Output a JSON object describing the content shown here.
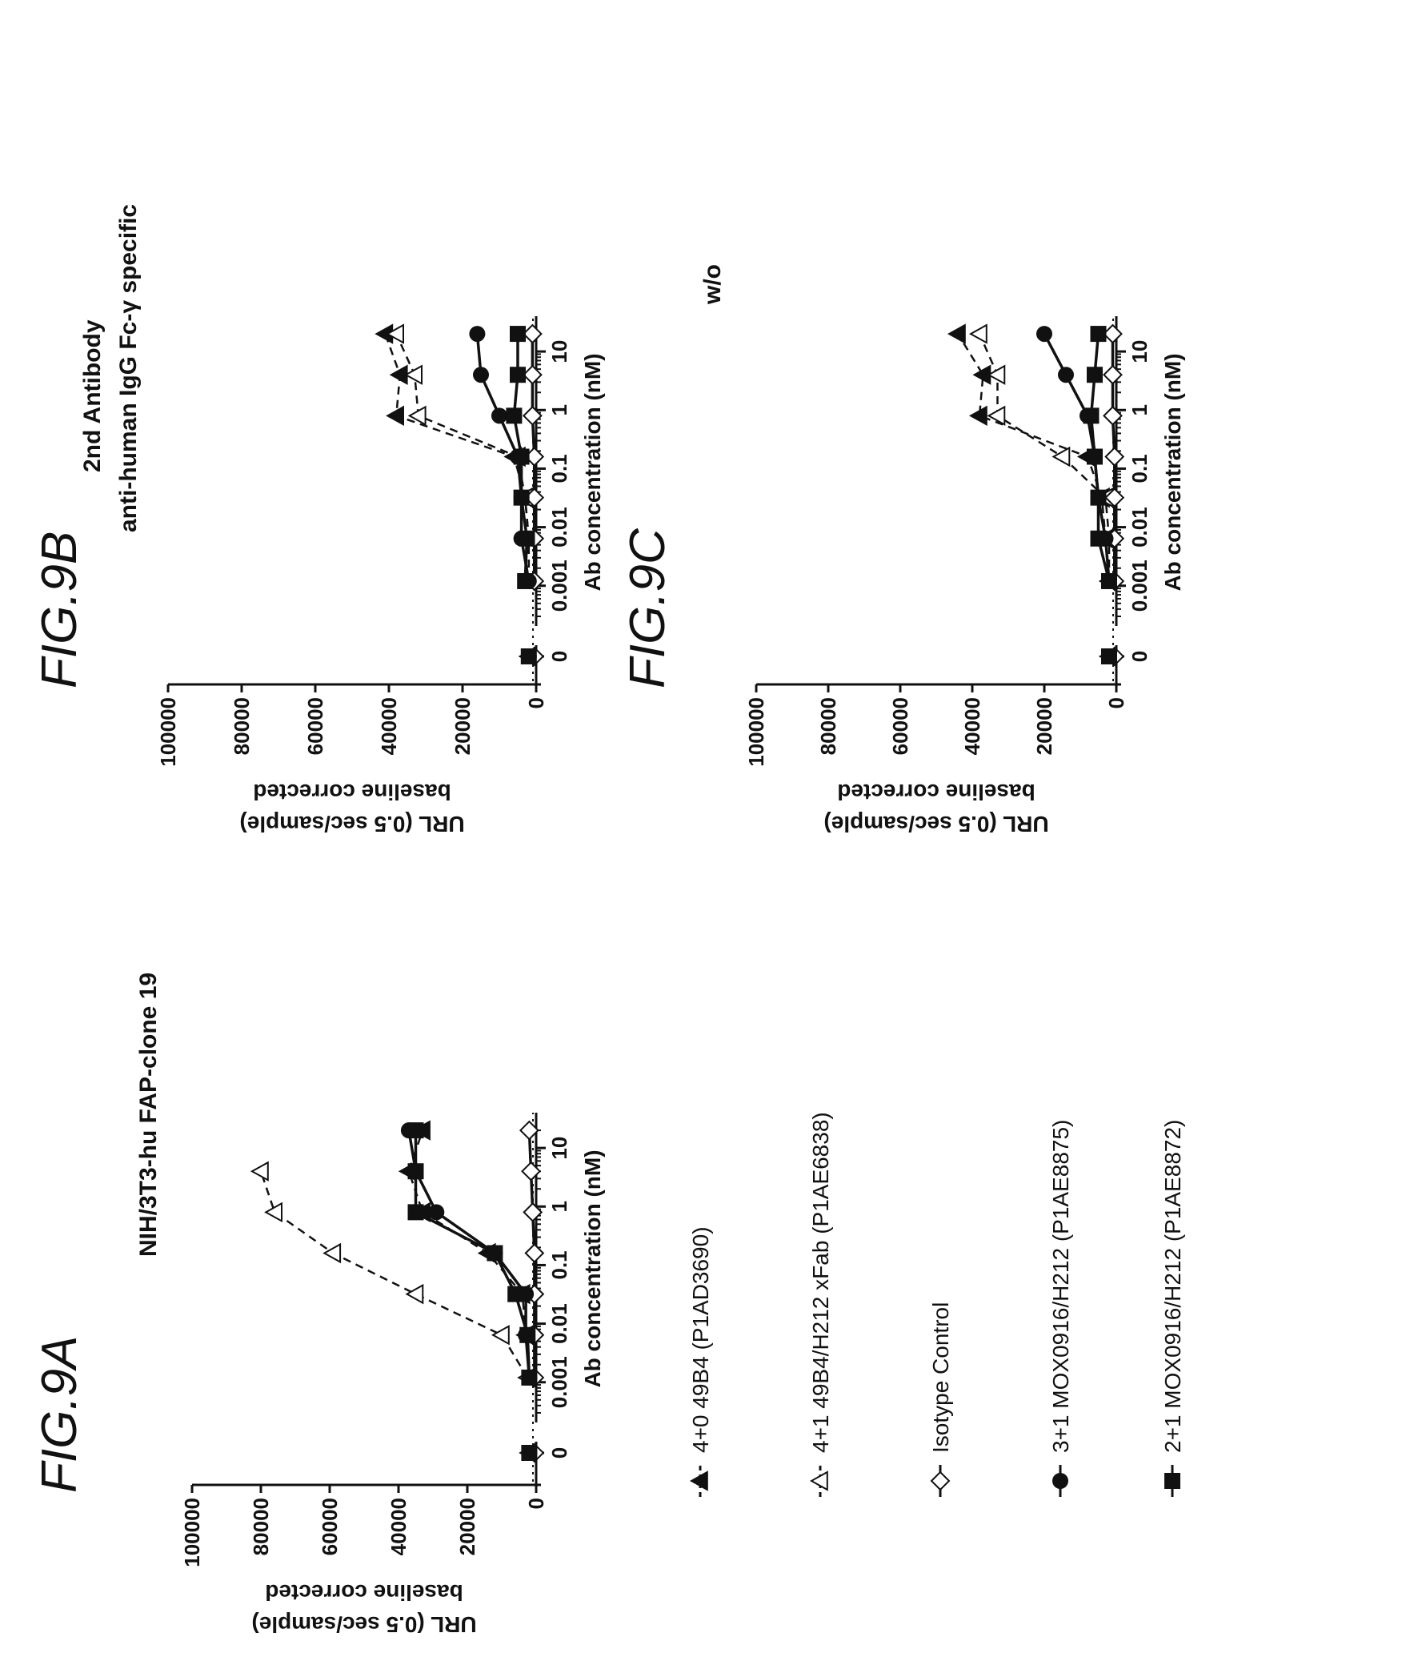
{
  "figures": {
    "a": {
      "label": "FIG.9A",
      "title": "NIH/3T3-hu FAP-clone 19",
      "title_sub": ""
    },
    "b": {
      "label": "FIG.9B",
      "title": "2nd Antibody",
      "title_sub": "anti-human IgG Fc-γ specific"
    },
    "c": {
      "label": "FIG.9C",
      "title": "w/o",
      "title_sub": ""
    }
  },
  "axes": {
    "xlabel": "Ab concentration (nM)",
    "ylabel_1": "URL (0.5 sec/sample)",
    "ylabel_2": "baseline corrected",
    "x_ticks": [
      "0",
      "0.001",
      "0.01",
      "0.1",
      "1",
      "10"
    ],
    "y_ticks": [
      "0",
      "20000",
      "40000",
      "60000",
      "80000",
      "100000"
    ]
  },
  "legend": [
    {
      "label": "4+0 49B4 (P1AD3690)",
      "marker": "filled-triangle",
      "line": "dashed"
    },
    {
      "label": "4+1 49B4/H212 xFab (P1AE6838)",
      "marker": "open-triangle",
      "line": "dashed"
    },
    {
      "label": "Isotype Control",
      "marker": "open-diamond",
      "line": "solid"
    },
    {
      "label": "3+1 MOX0916/H212 (P1AE8875)",
      "marker": "filled-circle",
      "line": "solid"
    },
    {
      "label": "2+1 MOX0916/H212 (P1AE8872)",
      "marker": "filled-square",
      "line": "solid"
    }
  ],
  "colors": {
    "ink": "#111111",
    "background": "#ffffff"
  },
  "chart_data": [
    {
      "id": "FIG.9A",
      "type": "scatter",
      "title": "NIH/3T3-hu FAP-clone 19",
      "xlabel": "Ab concentration (nM)",
      "ylabel": "URL (0.5 sec/sample) baseline corrected",
      "x_scale": "log",
      "xlim": [
        0.0003,
        25
      ],
      "ylim": [
        0,
        100000
      ],
      "x": [
        0,
        0.0012,
        0.0064,
        0.032,
        0.16,
        0.8,
        4,
        20
      ],
      "series": [
        {
          "name": "4+0 49B4 (P1AD3690)",
          "marker": "filled-triangle",
          "line": "dashed",
          "values": [
            2000,
            2000,
            3000,
            4000,
            14000,
            33000,
            37000,
            33000
          ]
        },
        {
          "name": "4+1 49B4/H212 xFab (P1AE6838)",
          "marker": "open-triangle",
          "line": "dashed",
          "values": [
            2000,
            2500,
            10000,
            35000,
            59000,
            76000,
            80000,
            null
          ]
        },
        {
          "name": "Isotype Control",
          "marker": "open-diamond",
          "line": "solid",
          "values": [
            500,
            500,
            500,
            500,
            500,
            1000,
            1500,
            2000
          ]
        },
        {
          "name": "3+1 MOX0916/H212 (P1AE8875)",
          "marker": "filled-circle",
          "line": "solid",
          "values": [
            2000,
            2000,
            3000,
            3000,
            12000,
            29000,
            35000,
            37000
          ]
        },
        {
          "name": "2+1 MOX0916/H212 (P1AE8872)",
          "marker": "filled-square",
          "line": "solid",
          "values": [
            2000,
            2000,
            2500,
            6000,
            12000,
            35000,
            35000,
            35000
          ]
        }
      ]
    },
    {
      "id": "FIG.9B",
      "type": "scatter",
      "title": "2nd Antibody anti-human IgG Fc-γ specific",
      "xlabel": "Ab concentration (nM)",
      "ylabel": "URL (0.5 sec/sample) baseline corrected",
      "x_scale": "log",
      "xlim": [
        0.0003,
        25
      ],
      "ylim": [
        0,
        100000
      ],
      "x": [
        0,
        0.0012,
        0.0064,
        0.032,
        0.16,
        0.8,
        4,
        20
      ],
      "series": [
        {
          "name": "4+0 49B4 (P1AD3690)",
          "marker": "filled-triangle",
          "line": "dashed",
          "values": [
            2000,
            2000,
            2000,
            3000,
            6000,
            38000,
            37000,
            41000
          ]
        },
        {
          "name": "4+1 49B4/H212 xFab (P1AE6838)",
          "marker": "open-triangle",
          "line": "dashed",
          "values": [
            2000,
            2000,
            2000,
            3000,
            5000,
            32000,
            33000,
            38000
          ]
        },
        {
          "name": "Isotype Control",
          "marker": "open-diamond",
          "line": "solid",
          "values": [
            500,
            500,
            500,
            500,
            500,
            1000,
            1000,
            1000
          ]
        },
        {
          "name": "3+1 MOX0916/H212 (P1AE8875)",
          "marker": "filled-circle",
          "line": "solid",
          "values": [
            2000,
            2000,
            4000,
            4000,
            5000,
            10000,
            15000,
            16000
          ]
        },
        {
          "name": "2+1 MOX0916/H212 (P1AE8872)",
          "marker": "filled-square",
          "line": "solid",
          "values": [
            2000,
            3000,
            2500,
            4000,
            4000,
            6000,
            5000,
            5000
          ]
        }
      ]
    },
    {
      "id": "FIG.9C",
      "type": "scatter",
      "title": "w/o",
      "xlabel": "Ab concentration (nM)",
      "ylabel": "URL (0.5 sec/sample) baseline corrected",
      "x_scale": "log",
      "xlim": [
        0.0003,
        25
      ],
      "ylim": [
        0,
        100000
      ],
      "x": [
        0,
        0.0012,
        0.0064,
        0.032,
        0.16,
        0.8,
        4,
        20
      ],
      "series": [
        {
          "name": "4+0 49B4 (P1AD3690)",
          "marker": "filled-triangle",
          "line": "dashed",
          "values": [
            2000,
            2000,
            3000,
            4000,
            8000,
            38000,
            37000,
            44000
          ]
        },
        {
          "name": "4+1 49B4/H212 xFab (P1AE6838)",
          "marker": "open-triangle",
          "line": "dashed",
          "values": [
            2000,
            2000,
            2000,
            3000,
            15000,
            33000,
            33000,
            38000
          ]
        },
        {
          "name": "Isotype Control",
          "marker": "open-diamond",
          "line": "solid",
          "values": [
            500,
            500,
            500,
            500,
            500,
            1000,
            1000,
            1000
          ]
        },
        {
          "name": "3+1 MOX0916/H212 (P1AE8875)",
          "marker": "filled-circle",
          "line": "solid",
          "values": [
            2000,
            2000,
            3000,
            5000,
            6000,
            8000,
            14000,
            20000
          ]
        },
        {
          "name": "2+1 MOX0916/H212 (P1AE8872)",
          "marker": "filled-square",
          "line": "solid",
          "values": [
            2000,
            2000,
            5000,
            5000,
            6000,
            7000,
            6000,
            5000
          ]
        }
      ]
    }
  ]
}
